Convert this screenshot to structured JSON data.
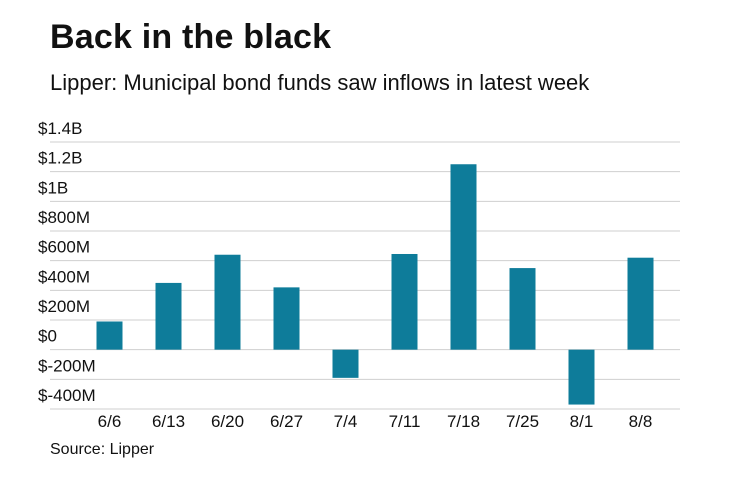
{
  "header": {
    "title": "Back in the black",
    "subtitle": "Lipper: Municipal bond funds saw inflows in latest week"
  },
  "footer": {
    "source": "Source: Lipper"
  },
  "colors": {
    "bar": "#0e7c9a",
    "grid": "#cfcfcf"
  },
  "chart_data": {
    "type": "bar",
    "title": "Back in the black",
    "subtitle": "Lipper: Municipal bond funds saw inflows in latest week",
    "xlabel": "",
    "ylabel": "",
    "categories": [
      "6/6",
      "6/13",
      "6/20",
      "6/27",
      "7/4",
      "7/11",
      "7/18",
      "7/25",
      "8/1",
      "8/8"
    ],
    "values": [
      190,
      450,
      640,
      420,
      -190,
      645,
      1250,
      550,
      -370,
      620
    ],
    "value_unit": "millions USD",
    "ylim": [
      -400,
      1400
    ],
    "yticks": [
      1400,
      1200,
      1000,
      800,
      600,
      400,
      200,
      0,
      -200,
      -400
    ],
    "ytick_labels": [
      "$1.4B",
      "$1.2B",
      "$1B",
      "$800M",
      "$600M",
      "$400M",
      "$200M",
      "$0",
      "$-200M",
      "$-400M"
    ],
    "grid": true,
    "legend": "none"
  }
}
